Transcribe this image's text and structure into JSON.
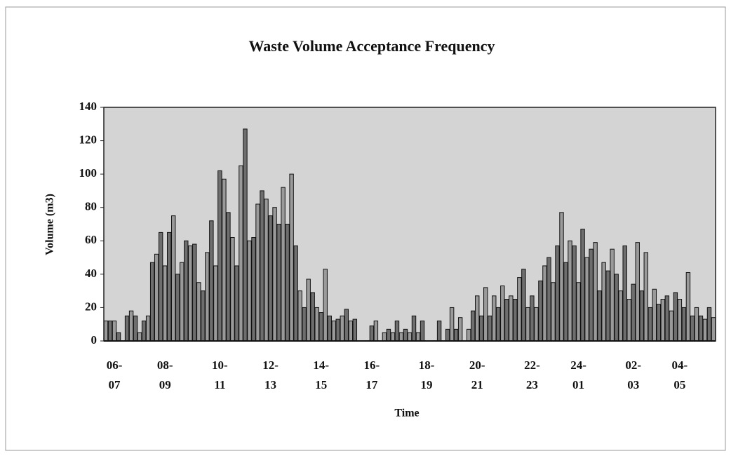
{
  "chart_data": {
    "type": "bar",
    "title": "Waste Volume Acceptance Frequency",
    "x_label": "Time",
    "y_label": "Volume (m3)",
    "categories": [
      null,
      null,
      "06-\n07",
      null,
      null,
      null,
      null,
      null,
      null,
      null,
      null,
      null,
      null,
      null,
      "08-\n09",
      null,
      null,
      null,
      null,
      null,
      null,
      null,
      null,
      null,
      null,
      null,
      null,
      "10-\n11",
      null,
      null,
      null,
      null,
      null,
      null,
      null,
      null,
      null,
      null,
      null,
      "12-\n13",
      null,
      null,
      null,
      null,
      null,
      null,
      null,
      null,
      null,
      null,
      null,
      "14-\n15",
      null,
      null,
      null,
      null,
      null,
      null,
      null,
      null,
      null,
      null,
      null,
      "16-\n17",
      null,
      null,
      null,
      null,
      null,
      null,
      null,
      null,
      null,
      null,
      null,
      null,
      "18-\n19",
      null,
      null,
      null,
      null,
      null,
      null,
      null,
      null,
      null,
      null,
      null,
      "20-\n21",
      null,
      null,
      null,
      null,
      null,
      null,
      null,
      null,
      null,
      null,
      null,
      null,
      "22-\n23",
      null,
      null,
      null,
      null,
      null,
      null,
      null,
      null,
      null,
      null,
      "24-\n01",
      null,
      null,
      null,
      null,
      null,
      null,
      null,
      null,
      null,
      null,
      null,
      null,
      "02-\n03",
      null,
      null,
      null,
      null,
      null,
      null,
      null,
      null,
      null,
      null,
      "04-\n05",
      null,
      null,
      null,
      null,
      null,
      null,
      null,
      null
    ],
    "values": [
      12,
      12,
      12,
      5,
      0,
      15,
      18,
      15,
      5,
      12,
      15,
      47,
      52,
      65,
      45,
      65,
      75,
      40,
      47,
      60,
      57,
      58,
      35,
      30,
      53,
      72,
      45,
      102,
      97,
      77,
      62,
      45,
      105,
      127,
      60,
      62,
      82,
      90,
      85,
      75,
      80,
      70,
      92,
      70,
      100,
      57,
      30,
      20,
      37,
      29,
      20,
      17,
      43,
      15,
      12,
      13,
      15,
      19,
      12,
      13,
      0,
      0,
      0,
      9,
      12,
      0,
      5,
      7,
      5,
      12,
      5,
      7,
      5,
      15,
      5,
      12,
      0,
      0,
      0,
      12,
      0,
      7,
      20,
      7,
      14,
      0,
      7,
      18,
      27,
      15,
      32,
      15,
      27,
      20,
      33,
      25,
      27,
      25,
      38,
      43,
      20,
      27,
      20,
      36,
      45,
      50,
      35,
      57,
      77,
      47,
      60,
      57,
      35,
      67,
      50,
      55,
      59,
      30,
      47,
      42,
      55,
      40,
      30,
      57,
      25,
      34,
      59,
      30,
      53,
      20,
      31,
      22,
      25,
      27,
      18,
      29,
      25,
      20,
      41,
      15,
      20,
      15,
      13,
      20,
      14
    ],
    "color": "#6e6e6e",
    "ylim": [
      0,
      140
    ],
    "yticks": [
      0,
      20,
      40,
      60,
      80,
      100,
      120,
      140
    ]
  }
}
